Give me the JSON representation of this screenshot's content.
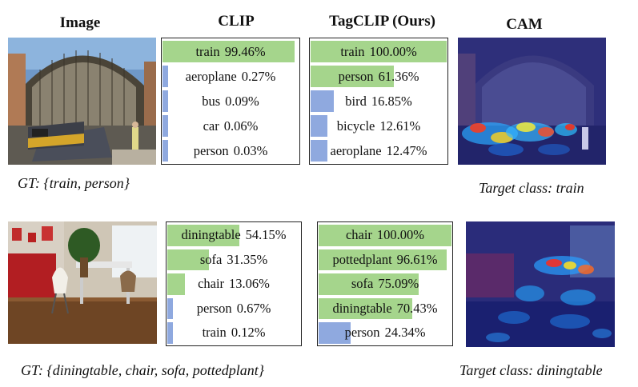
{
  "headers": {
    "image": "Image",
    "clip": "CLIP",
    "tagclip": "TagCLIP (Ours)",
    "cam": "CAM"
  },
  "colors": {
    "positive": "#a5d58c",
    "negative": "#8fa9df"
  },
  "rows": [
    {
      "gt": "GT: {train, person}",
      "target": "Target class: train",
      "clip": [
        {
          "label": "train",
          "value": "99.46%",
          "score": 99.46,
          "positive": true
        },
        {
          "label": "aeroplane",
          "value": "0.27%",
          "score": 0.27,
          "positive": false
        },
        {
          "label": "bus",
          "value": "0.09%",
          "score": 0.09,
          "positive": false
        },
        {
          "label": "car",
          "value": "0.06%",
          "score": 0.06,
          "positive": false
        },
        {
          "label": "person",
          "value": "0.03%",
          "score": 0.03,
          "positive": false
        }
      ],
      "tagclip": [
        {
          "label": "train",
          "value": "100.00%",
          "score": 100.0,
          "positive": true
        },
        {
          "label": "person",
          "value": "61.36%",
          "score": 61.36,
          "positive": true
        },
        {
          "label": "bird",
          "value": "16.85%",
          "score": 16.85,
          "positive": false
        },
        {
          "label": "bicycle",
          "value": "12.61%",
          "score": 12.61,
          "positive": false
        },
        {
          "label": "aeroplane",
          "value": "12.47%",
          "score": 12.47,
          "positive": false
        }
      ]
    },
    {
      "gt": "GT: {diningtable, chair, sofa, pottedplant}",
      "target": "Target class: diningtable",
      "clip": [
        {
          "label": "diningtable",
          "value": "54.15%",
          "score": 54.15,
          "positive": true
        },
        {
          "label": "sofa",
          "value": "31.35%",
          "score": 31.35,
          "positive": true
        },
        {
          "label": "chair",
          "value": "13.06%",
          "score": 13.06,
          "positive": true
        },
        {
          "label": "person",
          "value": "0.67%",
          "score": 0.67,
          "positive": false
        },
        {
          "label": "train",
          "value": "0.12%",
          "score": 0.12,
          "positive": false
        }
      ],
      "tagclip": [
        {
          "label": "chair",
          "value": "100.00%",
          "score": 100.0,
          "positive": true
        },
        {
          "label": "pottedplant",
          "value": "96.61%",
          "score": 96.61,
          "positive": true
        },
        {
          "label": "sofa",
          "value": "75.09%",
          "score": 75.09,
          "positive": true
        },
        {
          "label": "diningtable",
          "value": "70.43%",
          "score": 70.43,
          "positive": true
        },
        {
          "label": "person",
          "value": "24.34%",
          "score": 24.34,
          "positive": false
        }
      ]
    }
  ]
}
